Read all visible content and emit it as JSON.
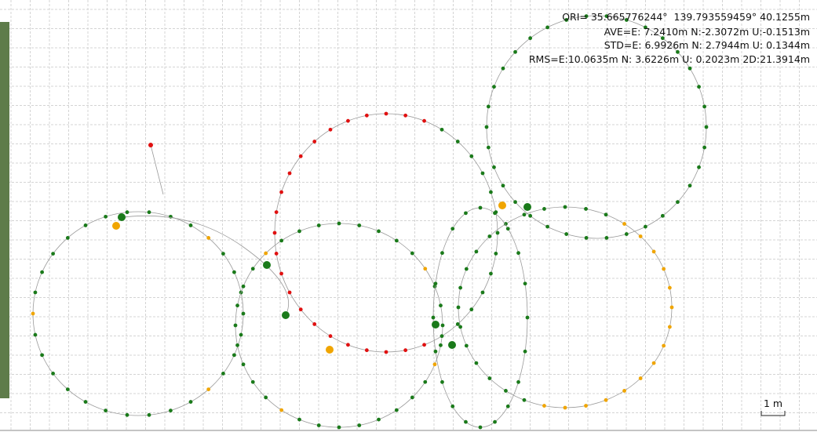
{
  "stats": {
    "lines": [
      "ORI= 35.665776244°  139.793559459° 40.1255m",
      "AVE=E: 7.2410m N:-2.3072m U:-0.1513m",
      "STD=E: 6.9926m N: 2.7944m U: 0.1344m",
      "RMS=E:10.0635m N: 3.6226m U: 0.2023m 2D:21.3914m"
    ]
  },
  "scale": {
    "label": "1 m"
  }
}
